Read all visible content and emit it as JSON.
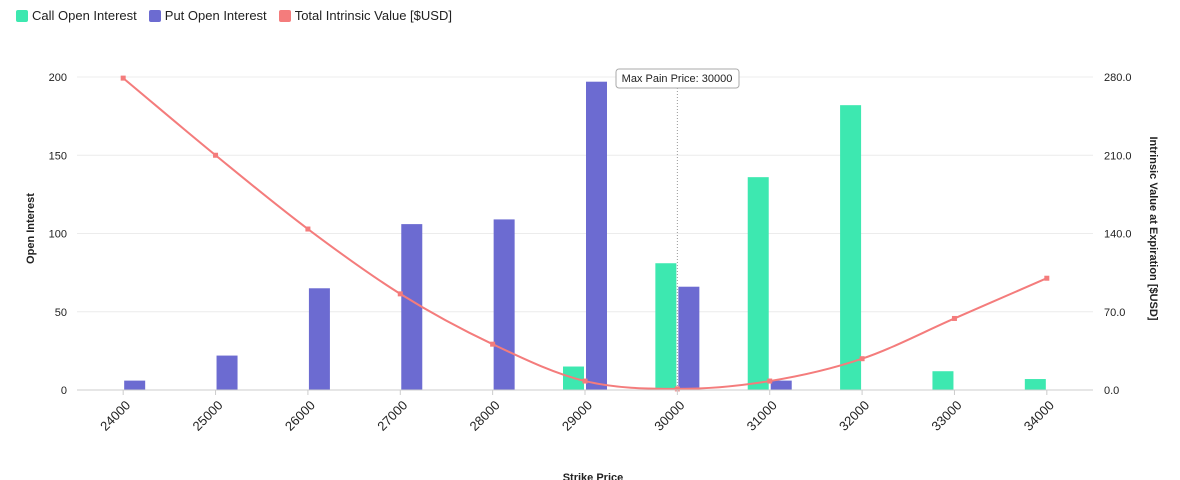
{
  "chart_data": {
    "type": "bar",
    "categories": [
      "24000",
      "25000",
      "26000",
      "27000",
      "28000",
      "29000",
      "30000",
      "31000",
      "32000",
      "33000",
      "34000"
    ],
    "series": [
      {
        "name": "Call Open Interest",
        "type": "bar",
        "axis": "left",
        "color": "#3de8b0",
        "values": [
          0,
          0,
          0,
          0,
          0,
          15,
          81,
          136,
          182,
          12,
          7
        ]
      },
      {
        "name": "Put Open Interest",
        "type": "bar",
        "axis": "left",
        "color": "#6c6bd1",
        "values": [
          6,
          22,
          65,
          106,
          109,
          197,
          66,
          6,
          0,
          0,
          0
        ]
      },
      {
        "name": "Total Intrinsic Value [$USD]",
        "type": "line",
        "axis": "right",
        "color": "#f47c7c",
        "values": [
          279,
          210,
          144,
          86,
          41,
          8,
          1,
          8,
          28,
          64,
          100
        ]
      }
    ],
    "xlabel": "Strike Price",
    "ylabel": "Open Interest",
    "y2label": "Intrinsic Value at Expiration [$USD]",
    "ylim": [
      0,
      200
    ],
    "y2lim": [
      0,
      280
    ],
    "yticks": [
      "0",
      "50",
      "100",
      "150",
      "200"
    ],
    "y2ticks": [
      "0.0",
      "70.0",
      "140.0",
      "210.0",
      "280.0"
    ],
    "annotation": {
      "label": "Max Pain Price: 30000",
      "at": "30000"
    },
    "legend_position": "top-left",
    "grid": true
  }
}
